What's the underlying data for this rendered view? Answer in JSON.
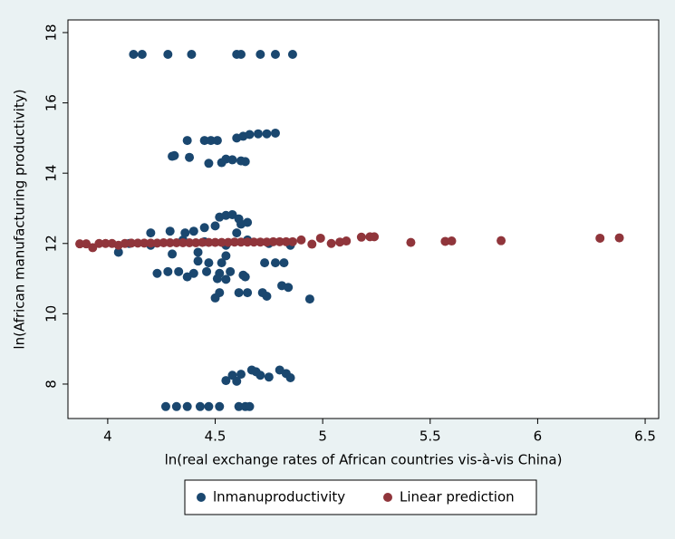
{
  "chart_data": {
    "type": "scatter",
    "x_label": "ln(real exchange rates of African countries vis-à-vis China)",
    "y_label": "ln(African manufacturing productivity)",
    "xlim": [
      3.815,
      6.563
    ],
    "ylim": [
      7.02,
      18.36
    ],
    "xticks": [
      4,
      4.5,
      5,
      5.5,
      6,
      6.5
    ],
    "yticks": [
      8,
      10,
      12,
      14,
      16,
      18
    ],
    "series": [
      {
        "name": "lnmanuproductivity",
        "color": "#1a476f",
        "x": [
          4.12,
          4.16,
          4.28,
          4.39,
          4.6,
          4.62,
          4.71,
          4.78,
          4.86,
          4.6,
          4.63,
          4.66,
          4.7,
          4.74,
          4.78,
          4.37,
          4.45,
          4.48,
          4.51,
          4.3,
          4.31,
          4.38,
          4.55,
          4.58,
          4.62,
          4.64,
          4.47,
          4.53,
          4.52,
          4.55,
          4.58,
          4.61,
          4.45,
          4.5,
          4.62,
          4.65,
          4.2,
          4.29,
          4.36,
          4.4,
          4.6,
          4.1,
          4.2,
          4.35,
          4.45,
          4.55,
          4.65,
          4.75,
          4.85,
          4.05,
          4.3,
          4.42,
          4.55,
          4.42,
          4.47,
          4.53,
          4.73,
          4.78,
          4.82,
          4.23,
          4.28,
          4.33,
          4.4,
          4.46,
          4.52,
          4.57,
          4.63,
          4.37,
          4.51,
          4.55,
          4.64,
          4.52,
          4.61,
          4.65,
          4.72,
          4.81,
          4.84,
          4.5,
          4.74,
          4.94,
          4.67,
          4.69,
          4.8,
          4.83,
          4.58,
          4.62,
          4.71,
          4.75,
          4.85,
          4.55,
          4.6,
          4.27,
          4.32,
          4.37,
          4.43,
          4.47,
          4.52,
          4.61,
          4.64,
          4.66
        ],
        "y": [
          17.38,
          17.38,
          17.38,
          17.38,
          17.38,
          17.38,
          17.38,
          17.38,
          17.38,
          15.0,
          15.05,
          15.1,
          15.12,
          15.12,
          15.14,
          14.93,
          14.93,
          14.93,
          14.93,
          14.48,
          14.5,
          14.45,
          14.4,
          14.38,
          14.35,
          14.33,
          14.28,
          14.3,
          12.75,
          12.8,
          12.82,
          12.7,
          12.45,
          12.5,
          12.55,
          12.6,
          12.3,
          12.35,
          12.3,
          12.35,
          12.3,
          12.0,
          11.95,
          12.1,
          12.05,
          11.95,
          12.1,
          12.0,
          11.95,
          11.75,
          11.7,
          11.75,
          11.65,
          11.5,
          11.45,
          11.45,
          11.45,
          11.45,
          11.45,
          11.15,
          11.2,
          11.2,
          11.15,
          11.2,
          11.15,
          11.2,
          11.1,
          11.05,
          11.0,
          10.98,
          11.05,
          10.6,
          10.6,
          10.6,
          10.6,
          10.8,
          10.75,
          10.45,
          10.5,
          10.42,
          8.4,
          8.35,
          8.4,
          8.3,
          8.25,
          8.28,
          8.25,
          8.2,
          8.18,
          8.1,
          8.08,
          7.36,
          7.36,
          7.36,
          7.36,
          7.36,
          7.36,
          7.36,
          7.36,
          7.36
        ]
      },
      {
        "name": "Linear prediction",
        "color": "#90353b",
        "x": [
          3.87,
          3.9,
          3.93,
          3.96,
          3.99,
          4.02,
          4.05,
          4.08,
          4.11,
          4.14,
          4.17,
          4.2,
          4.23,
          4.26,
          4.29,
          4.32,
          4.35,
          4.38,
          4.41,
          4.44,
          4.47,
          4.5,
          4.53,
          4.56,
          4.59,
          4.62,
          4.65,
          4.68,
          4.71,
          4.74,
          4.77,
          4.8,
          4.83,
          4.86,
          4.9,
          4.95,
          4.99,
          5.04,
          5.08,
          5.11,
          5.18,
          5.22,
          5.24,
          5.41,
          5.57,
          5.6,
          5.83,
          6.29,
          6.38
        ],
        "y": [
          11.99,
          11.99,
          11.88,
          12.0,
          12.0,
          12.0,
          11.95,
          12.0,
          12.01,
          12.01,
          12.01,
          12.01,
          12.01,
          12.02,
          12.02,
          12.02,
          12.02,
          12.02,
          12.02,
          12.03,
          12.03,
          12.03,
          12.03,
          12.03,
          12.04,
          12.04,
          12.04,
          12.04,
          12.04,
          12.04,
          12.05,
          12.05,
          12.05,
          12.05,
          12.1,
          11.98,
          12.15,
          12.0,
          12.04,
          12.07,
          12.18,
          12.19,
          12.19,
          12.03,
          12.06,
          12.07,
          12.08,
          12.15,
          12.16
        ]
      }
    ]
  }
}
